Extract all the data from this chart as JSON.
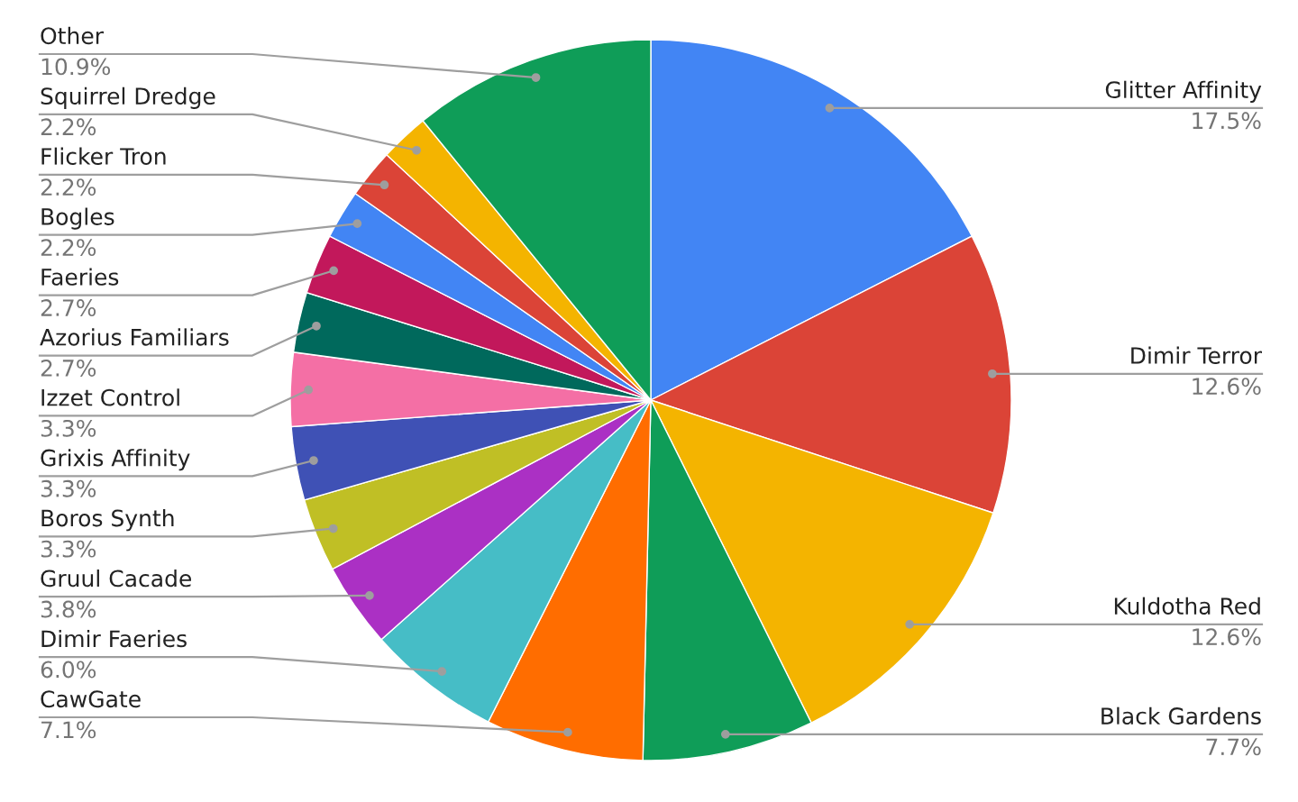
{
  "chart_data": {
    "type": "pie",
    "categories": [
      "Glitter Affinity",
      "Dimir Terror",
      "Kuldotha Red",
      "Black Gardens",
      "CawGate",
      "Dimir Faeries",
      "Gruul Cacade",
      "Boros Synth",
      "Grixis Affinity",
      "Izzet Control",
      "Azorius Familiars",
      "Faeries",
      "Bogles",
      "Flicker Tron",
      "Squirrel Dredge",
      "Other"
    ],
    "values": [
      17.5,
      12.6,
      12.6,
      7.7,
      7.1,
      6.0,
      3.8,
      3.3,
      3.3,
      3.3,
      2.7,
      2.7,
      2.2,
      2.2,
      2.2,
      10.9
    ],
    "value_labels": [
      "17.5%",
      "12.6%",
      "12.6%",
      "7.7%",
      "7.1%",
      "6.0%",
      "3.8%",
      "3.3%",
      "3.3%",
      "3.3%",
      "2.7%",
      "2.7%",
      "2.2%",
      "2.2%",
      "2.2%",
      "10.9%"
    ],
    "colors": [
      "#4285f4",
      "#db4437",
      "#f4b400",
      "#0f9d58",
      "#ff6d00",
      "#46bdc6",
      "#ab30c4",
      "#c0bf25",
      "#3f51b5",
      "#f46fa5",
      "#00695c",
      "#c2185b",
      "#4285f4",
      "#db4437",
      "#f4b400",
      "#0f9d58"
    ],
    "legend": false
  }
}
